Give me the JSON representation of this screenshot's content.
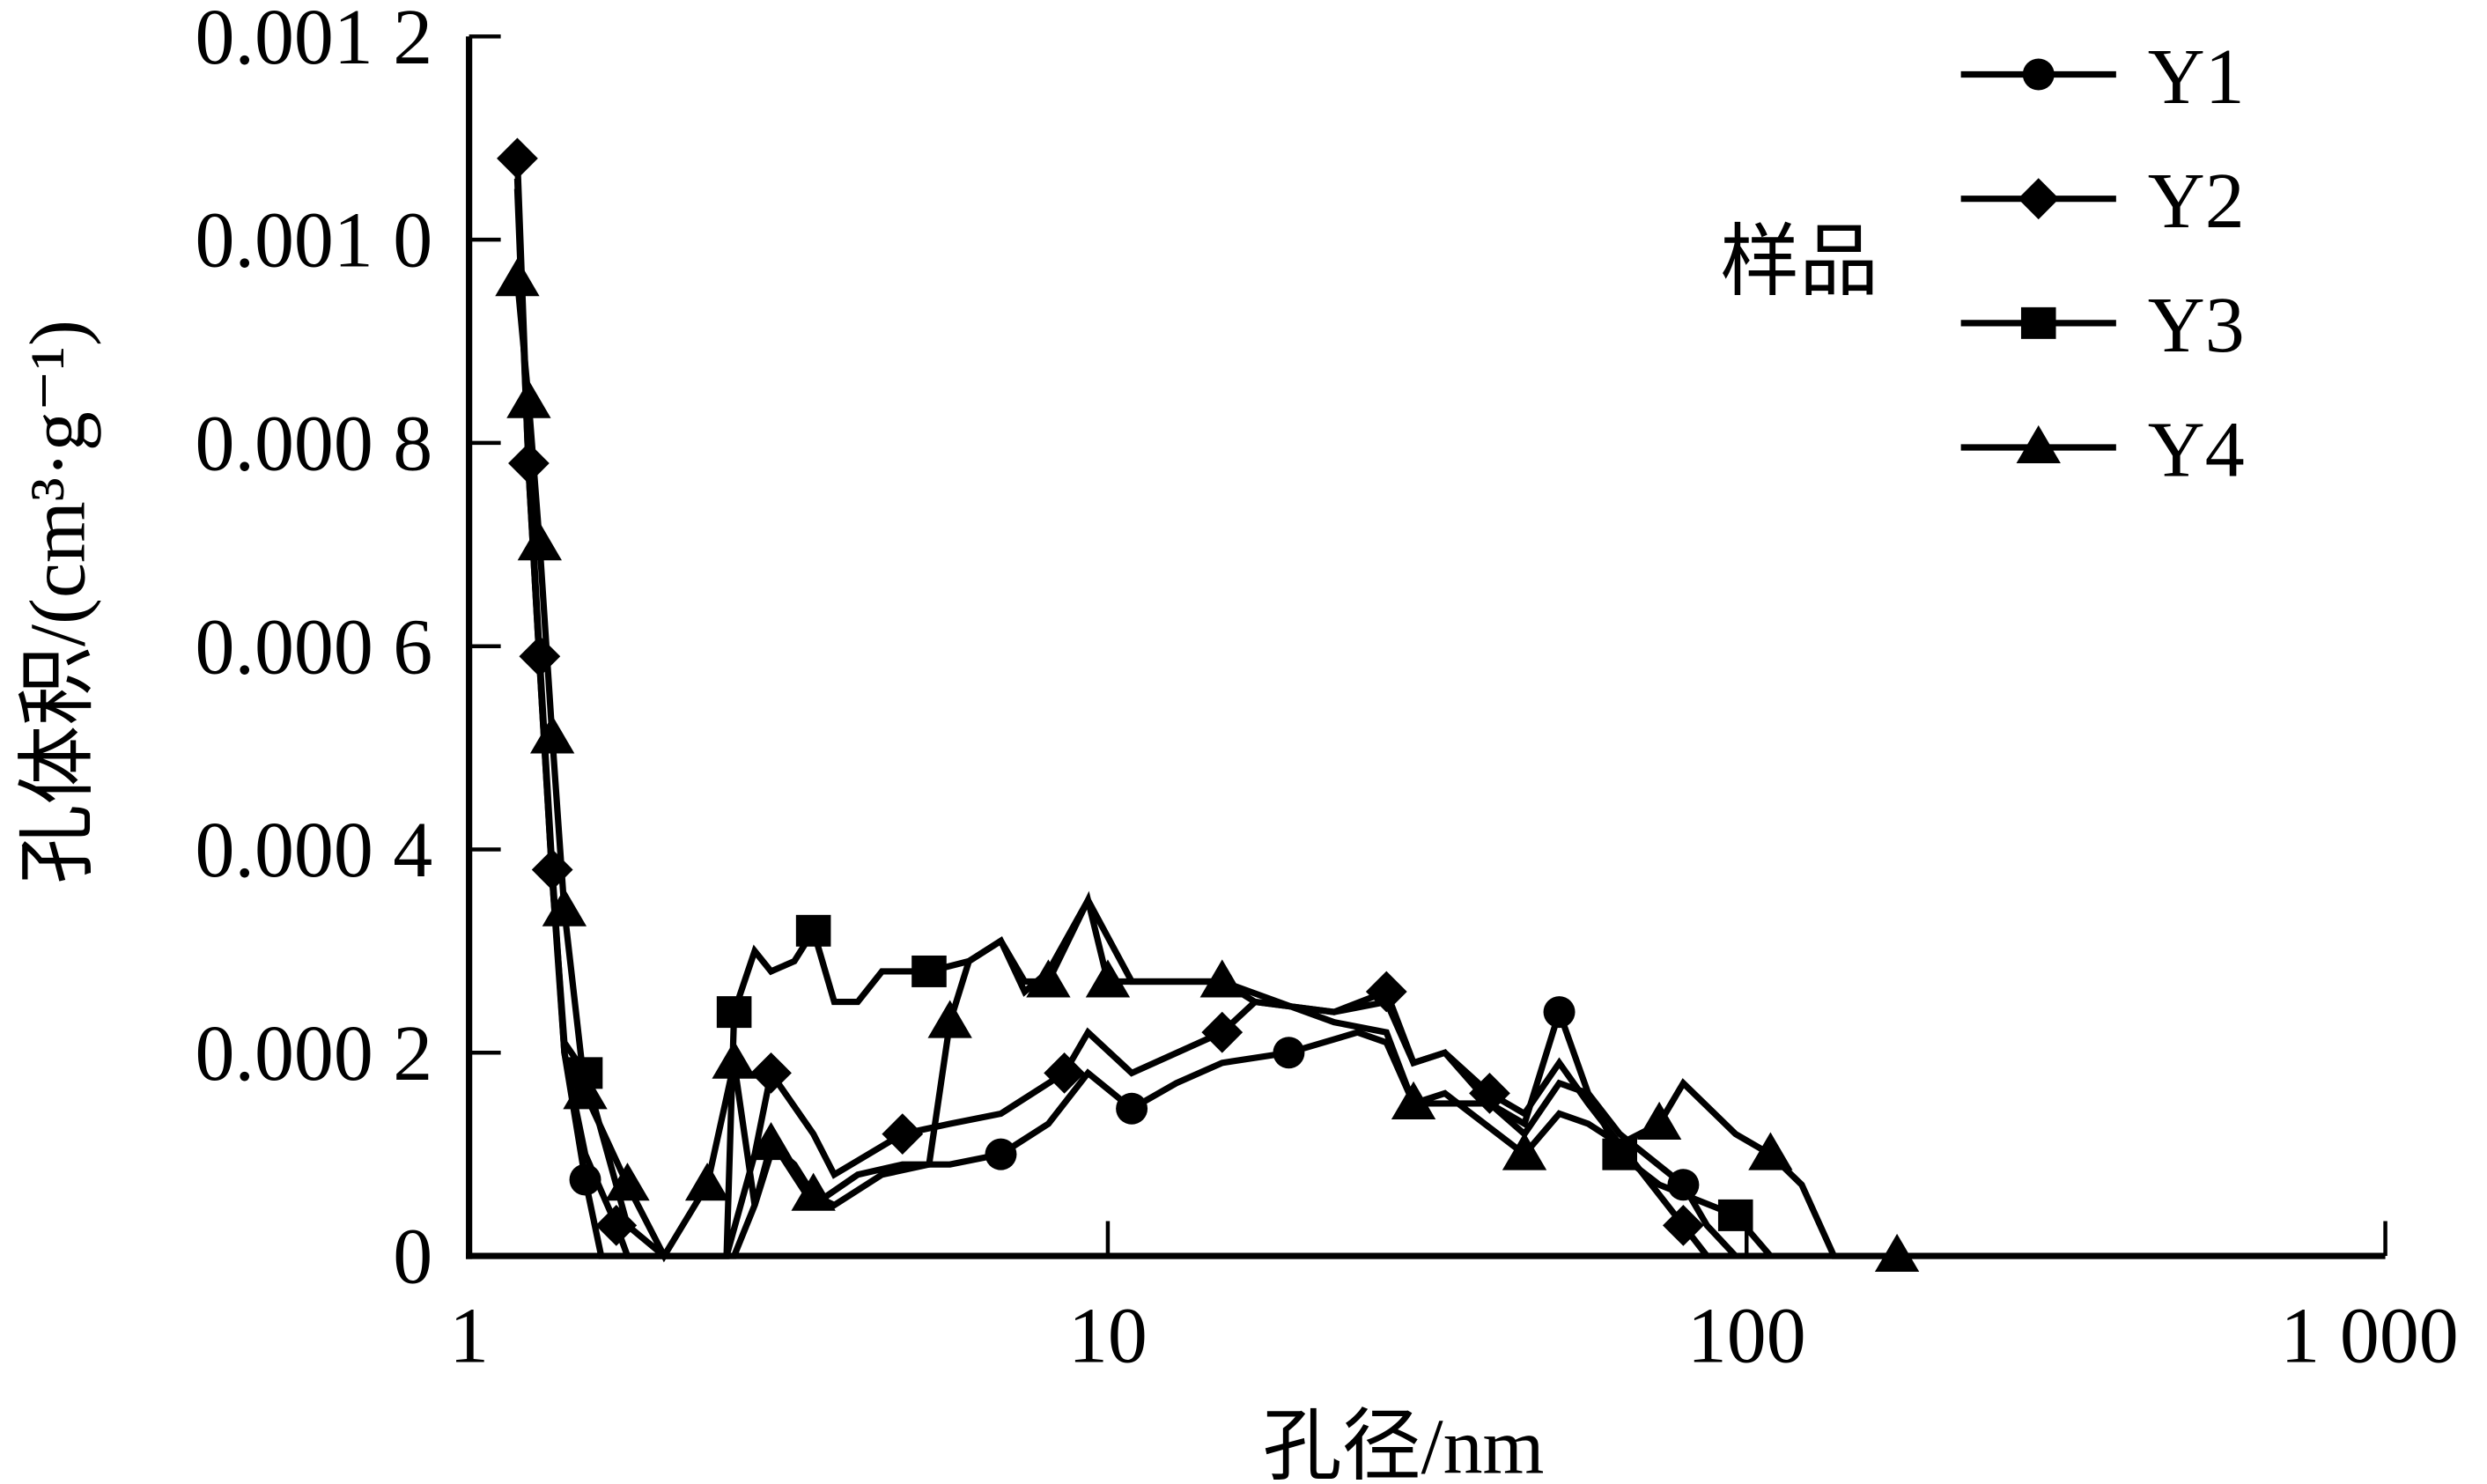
{
  "chart_data": {
    "type": "line",
    "title": "",
    "xlabel": "孔径/nm",
    "ylabel": "孔体积/(cm³·g⁻¹)",
    "xscale": "log",
    "xlim": [
      1,
      1000
    ],
    "ylim": [
      0,
      0.0012
    ],
    "grid": false,
    "x_ticks": [
      1,
      10,
      100,
      1000
    ],
    "x_tick_labels": [
      "1",
      "10",
      "100",
      "1 000"
    ],
    "y_ticks": [
      0,
      0.0002,
      0.0004,
      0.0006,
      0.0008,
      0.001,
      0.0012
    ],
    "y_tick_labels": [
      "0",
      "0.000 2",
      "0.000 4",
      "0.000 6",
      "0.000 8",
      "0.001 0",
      "0.001 2"
    ],
    "legend": {
      "title": "样品",
      "placement": "top-right"
    },
    "color": "#000000",
    "series": [
      {
        "name": "Y1",
        "marker": "circle",
        "points": [
          [
            1.19,
            0.00106
          ],
          [
            1.24,
            0.00077
          ],
          [
            1.29,
            0.00058
          ],
          [
            1.35,
            0.00037
          ],
          [
            1.41,
            0.0002
          ],
          [
            1.52,
            7.5e-05
          ],
          [
            1.61,
            0
          ],
          [
            2.6,
            0
          ],
          [
            2.8,
            5e-05
          ],
          [
            3.0,
            0.00011
          ],
          [
            3.46,
            5e-05
          ],
          [
            4.06,
            8e-05
          ],
          [
            4.77,
            9e-05
          ],
          [
            5.66,
            9e-05
          ],
          [
            6.8,
            0.0001
          ],
          [
            8.07,
            0.00013
          ],
          [
            9.31,
            0.00018
          ],
          [
            10.9,
            0.000145
          ],
          [
            12.8,
            0.00017
          ],
          [
            15.1,
            0.00019
          ],
          [
            19.2,
            0.0002
          ],
          [
            24.6,
            0.00022
          ],
          [
            27.3,
            0.00021
          ],
          [
            30.1,
            0.00015
          ],
          [
            39.6,
            0.00015
          ],
          [
            44.9,
            0.00013
          ],
          [
            50.9,
            0.00024
          ],
          [
            56.5,
            0.00016
          ],
          [
            63.3,
            0.00012
          ],
          [
            79.6,
            7e-05
          ],
          [
            86.7,
            3e-05
          ],
          [
            96.1,
            0
          ]
        ],
        "marker_x": [
          1.52,
          6.8,
          10.9,
          19.2,
          50.9,
          79.6
        ]
      },
      {
        "name": "Y2",
        "marker": "diamond",
        "points": [
          [
            1.19,
            0.00108
          ],
          [
            1.24,
            0.00078
          ],
          [
            1.29,
            0.00059
          ],
          [
            1.35,
            0.00038
          ],
          [
            1.41,
            0.0002
          ],
          [
            1.52,
            0.0001
          ],
          [
            1.7,
            3e-05
          ],
          [
            1.77,
            0
          ],
          [
            2.53,
            0
          ],
          [
            2.8,
            0.0001
          ],
          [
            2.97,
            0.00018
          ],
          [
            3.46,
            0.00012
          ],
          [
            3.73,
            8e-05
          ],
          [
            4.77,
            0.00012
          ],
          [
            5.66,
            0.00013
          ],
          [
            6.8,
            0.00014
          ],
          [
            8.55,
            0.00018
          ],
          [
            9.31,
            0.00022
          ],
          [
            10.9,
            0.00018
          ],
          [
            15.1,
            0.00022
          ],
          [
            17.0,
            0.00025
          ],
          [
            22.6,
            0.00024
          ],
          [
            27.3,
            0.00026
          ],
          [
            30.1,
            0.00019
          ],
          [
            33.7,
            0.0002
          ],
          [
            39.6,
            0.00016
          ],
          [
            44.9,
            0.00014
          ],
          [
            50.9,
            0.00019
          ],
          [
            56.5,
            0.00015
          ],
          [
            63.3,
            0.00011
          ],
          [
            79.6,
            3e-05
          ],
          [
            86.7,
            0
          ]
        ],
        "marker_x": [
          1.19,
          1.24,
          1.29,
          1.35,
          1.7,
          2.97,
          4.77,
          8.55,
          15.1,
          27.3,
          39.6,
          79.6
        ]
      },
      {
        "name": "Y3",
        "marker": "square",
        "points": [
          [
            1.19,
            0.00105
          ],
          [
            1.24,
            0.00077
          ],
          [
            1.29,
            0.00058
          ],
          [
            1.35,
            0.00037
          ],
          [
            1.41,
            0.00021
          ],
          [
            1.52,
            0.00018
          ],
          [
            1.77,
            3e-05
          ],
          [
            2.02,
            0
          ],
          [
            2.53,
            0
          ],
          [
            2.6,
            0.00024
          ],
          [
            2.8,
            0.0003
          ],
          [
            2.97,
            0.00028
          ],
          [
            3.23,
            0.00029
          ],
          [
            3.46,
            0.00032
          ],
          [
            3.73,
            0.00025
          ],
          [
            4.06,
            0.00025
          ],
          [
            4.43,
            0.00028
          ],
          [
            5.25,
            0.00028
          ],
          [
            6.06,
            0.00029
          ],
          [
            6.8,
            0.00031
          ],
          [
            7.41,
            0.00026
          ],
          [
            8.07,
            0.00028
          ],
          [
            9.31,
            0.00035
          ],
          [
            10.9,
            0.00027
          ],
          [
            12.8,
            0.00027
          ],
          [
            15.1,
            0.00027
          ],
          [
            17.0,
            0.00025
          ],
          [
            22.6,
            0.00024
          ],
          [
            27.3,
            0.00025
          ],
          [
            30.1,
            0.00019
          ],
          [
            33.7,
            0.0002
          ],
          [
            39.6,
            0.00015
          ],
          [
            44.9,
            0.00012
          ],
          [
            50.9,
            0.00017
          ],
          [
            56.5,
            0.00016
          ],
          [
            63.3,
            0.0001
          ],
          [
            73.0,
            7e-05
          ],
          [
            96.1,
            4e-05
          ],
          [
            109,
            0
          ]
        ],
        "marker_x": [
          1.52,
          2.6,
          3.46,
          5.25,
          63.3,
          96.1
        ]
      },
      {
        "name": "Y4",
        "marker": "triangle",
        "points": [
          [
            1.19,
            0.00096
          ],
          [
            1.24,
            0.00084
          ],
          [
            1.29,
            0.0007
          ],
          [
            1.35,
            0.00051
          ],
          [
            1.41,
            0.00034
          ],
          [
            1.52,
            0.00016
          ],
          [
            1.77,
            7e-05
          ],
          [
            2.02,
            0
          ],
          [
            2.36,
            7e-05
          ],
          [
            2.6,
            0.00019
          ],
          [
            2.8,
            5e-05
          ],
          [
            2.97,
            0.00011
          ],
          [
            3.23,
            9e-05
          ],
          [
            3.46,
            6e-05
          ],
          [
            3.73,
            5e-05
          ],
          [
            4.43,
            8e-05
          ],
          [
            5.25,
            9e-05
          ],
          [
            5.66,
            0.00023
          ],
          [
            6.06,
            0.00029
          ],
          [
            6.8,
            0.00031
          ],
          [
            7.41,
            0.00027
          ],
          [
            8.07,
            0.00027
          ],
          [
            9.31,
            0.00035
          ],
          [
            10.0,
            0.00027
          ],
          [
            15.1,
            0.00027
          ],
          [
            22.6,
            0.00023
          ],
          [
            27.3,
            0.00022
          ],
          [
            30.1,
            0.00015
          ],
          [
            33.7,
            0.00016
          ],
          [
            44.9,
            0.0001
          ],
          [
            50.9,
            0.00014
          ],
          [
            56.5,
            0.00013
          ],
          [
            63.3,
            0.00011
          ],
          [
            73.0,
            0.00013
          ],
          [
            79.6,
            0.00017
          ],
          [
            96.1,
            0.00012
          ],
          [
            109,
            0.0001
          ],
          [
            122,
            7e-05
          ],
          [
            137,
            0
          ],
          [
            172,
            0
          ]
        ],
        "marker_x": [
          1.19,
          1.24,
          1.29,
          1.35,
          1.41,
          1.52,
          1.77,
          2.36,
          2.6,
          2.97,
          3.46,
          5.66,
          8.07,
          10.0,
          15.1,
          30.1,
          44.9,
          73.0,
          109,
          172
        ]
      }
    ]
  }
}
